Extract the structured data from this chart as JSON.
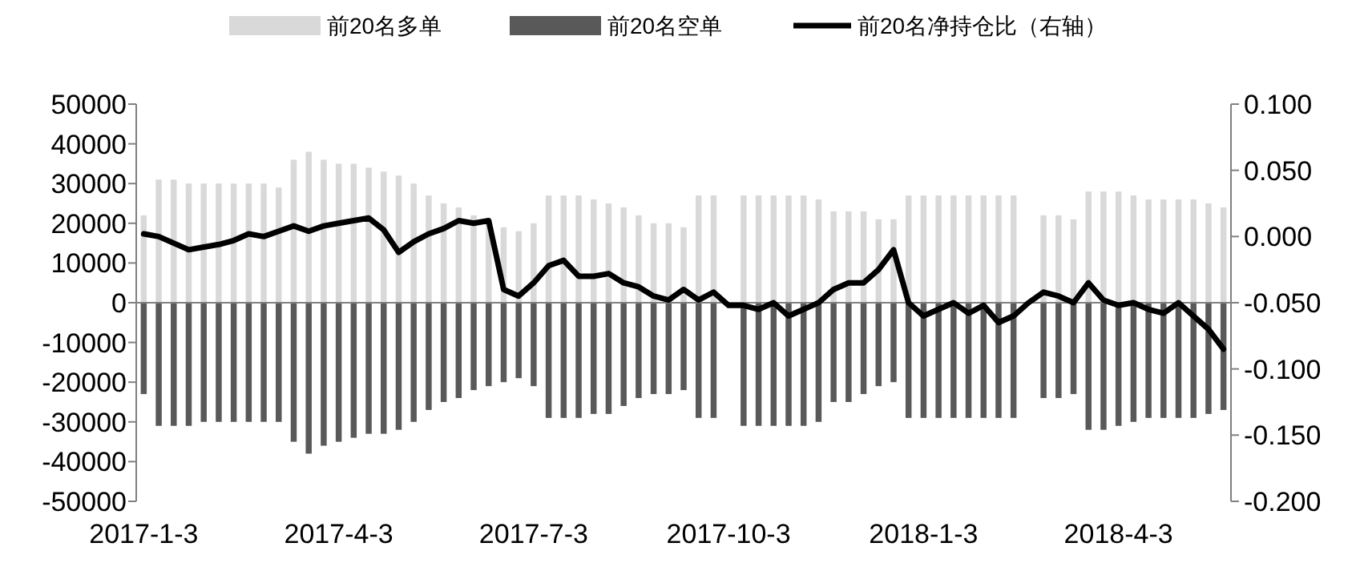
{
  "chart_data": {
    "type": "bar",
    "stacked": true,
    "legend": "top",
    "categories": [
      "2017-1-3",
      null,
      null,
      null,
      null,
      null,
      null,
      null,
      null,
      null,
      null,
      null,
      null,
      "2017-4-3",
      null,
      null,
      null,
      null,
      null,
      null,
      null,
      null,
      null,
      null,
      null,
      null,
      "2017-7-3",
      null,
      null,
      null,
      null,
      null,
      null,
      null,
      null,
      null,
      null,
      null,
      null,
      "2017-10-3",
      null,
      null,
      null,
      null,
      null,
      null,
      null,
      null,
      null,
      null,
      null,
      null,
      "2018-1-3",
      null,
      null,
      null,
      null,
      null,
      null,
      null,
      null,
      null,
      null,
      null,
      null,
      "2018-4-3",
      null,
      null,
      null,
      null,
      null,
      null,
      null
    ],
    "series": [
      {
        "name": "前20名多单",
        "color": "#d9d9d9",
        "values": [
          22000,
          31000,
          31000,
          30000,
          30000,
          30000,
          30000,
          30000,
          30000,
          29000,
          36000,
          38000,
          36000,
          35000,
          35000,
          34000,
          33000,
          32000,
          30000,
          27000,
          25000,
          24000,
          22000,
          21000,
          19000,
          18000,
          20000,
          27000,
          27000,
          27000,
          26000,
          25000,
          24000,
          22000,
          20000,
          20000,
          19000,
          27000,
          27000,
          null,
          27000,
          27000,
          27000,
          27000,
          27000,
          26000,
          23000,
          23000,
          23000,
          21000,
          21000,
          27000,
          27000,
          27000,
          27000,
          27000,
          27000,
          27000,
          27000,
          null,
          22000,
          22000,
          21000,
          28000,
          28000,
          28000,
          27000,
          26000,
          26000,
          26000,
          26000,
          25000,
          24000
        ]
      },
      {
        "name": "前20名空单",
        "color": "#595959",
        "values": [
          -23000,
          -31000,
          -31000,
          -31000,
          -30000,
          -30000,
          -30000,
          -30000,
          -30000,
          -30000,
          -35000,
          -38000,
          -36000,
          -35000,
          -34000,
          -33000,
          -33000,
          -32000,
          -30000,
          -27000,
          -25000,
          -24000,
          -22000,
          -21000,
          -20000,
          -19000,
          -21000,
          -29000,
          -29000,
          -29000,
          -28000,
          -28000,
          -26000,
          -24000,
          -23000,
          -23000,
          -22000,
          -29000,
          -29000,
          null,
          -31000,
          -31000,
          -31000,
          -31000,
          -31000,
          -30000,
          -25000,
          -25000,
          -23000,
          -21000,
          -20000,
          -29000,
          -29000,
          -29000,
          -29000,
          -29000,
          -29000,
          -29000,
          -29000,
          null,
          -24000,
          -24000,
          -23000,
          -32000,
          -32000,
          -31000,
          -30000,
          -29000,
          -29000,
          -29000,
          -29000,
          -28000,
          -27000
        ]
      },
      {
        "name": "前20名净持仓比（右轴）",
        "type": "line",
        "axis": "y2",
        "color": "#000000",
        "values": [
          0.002,
          0,
          -0.005,
          -0.01,
          -0.008,
          -0.006,
          -0.003,
          0.002,
          0,
          0.004,
          0.008,
          0.004,
          0.008,
          0.01,
          0.012,
          0.014,
          0.005,
          -0.012,
          -0.004,
          0.002,
          0.006,
          0.012,
          0.01,
          0.012,
          -0.04,
          -0.045,
          -0.035,
          -0.022,
          -0.018,
          -0.03,
          -0.03,
          -0.028,
          -0.035,
          -0.038,
          -0.045,
          -0.048,
          -0.04,
          -0.048,
          -0.042,
          -0.052,
          -0.052,
          -0.055,
          -0.05,
          -0.06,
          -0.055,
          -0.05,
          -0.04,
          -0.035,
          -0.035,
          -0.025,
          -0.01,
          -0.05,
          -0.06,
          -0.055,
          -0.05,
          -0.058,
          -0.052,
          -0.065,
          -0.06,
          -0.05,
          -0.042,
          -0.045,
          -0.05,
          -0.035,
          -0.048,
          -0.052,
          -0.05,
          -0.055,
          -0.058,
          -0.05,
          -0.06,
          -0.07,
          -0.085
        ]
      }
    ],
    "ylim": [
      -50000,
      50000
    ],
    "yticks": [
      -50000,
      -40000,
      -30000,
      -20000,
      -10000,
      0,
      10000,
      20000,
      30000,
      40000,
      50000
    ],
    "y2lim": [
      -0.2,
      0.1
    ],
    "y2ticks": [
      {
        "value": -0.2,
        "label": "-0.200"
      },
      {
        "value": -0.15,
        "label": "-0.150"
      },
      {
        "value": -0.1,
        "label": "-0.100"
      },
      {
        "value": -0.05,
        "label": "-0.050"
      },
      {
        "value": 0,
        "label": "0.000"
      },
      {
        "value": 0.05,
        "label": "0.050"
      },
      {
        "value": 0.1,
        "label": "0.100"
      }
    ]
  }
}
